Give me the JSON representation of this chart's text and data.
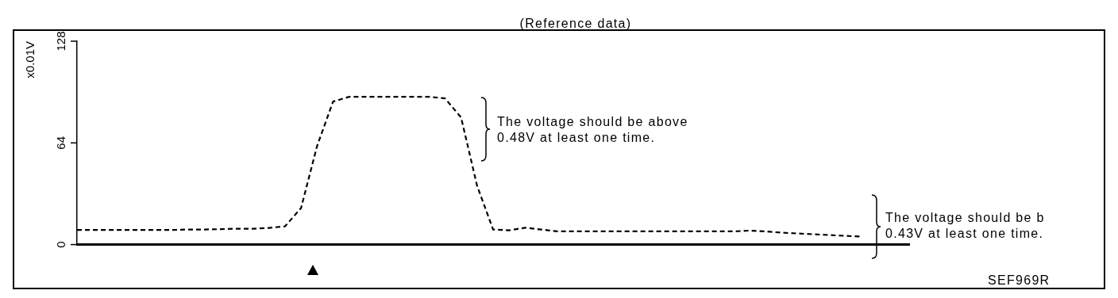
{
  "chart_data": {
    "type": "line",
    "title": "(Reference data)",
    "ylabel": "x0.01V",
    "categories": [
      null,
      null,
      null,
      null,
      null,
      null,
      null,
      null,
      null,
      null,
      null,
      null,
      null,
      null,
      null,
      null,
      null,
      null,
      null,
      null,
      null,
      null,
      null,
      null,
      null,
      null,
      null,
      null,
      null,
      null,
      null,
      null,
      null,
      null,
      null,
      null,
      null,
      null,
      null,
      null,
      null,
      null,
      null,
      null,
      null,
      null,
      null,
      null,
      null,
      null,
      null,
      null,
      null
    ],
    "series": [
      {
        "color": "#000000",
        "values": [
          9.2,
          9.2,
          9.2,
          9.2,
          9.2,
          9.2,
          9.2,
          9.5,
          9.5,
          9.7,
          10,
          10,
          10.5,
          11.5,
          23,
          62,
          90,
          93,
          93,
          93,
          93,
          93,
          93,
          92,
          80,
          37,
          9.5,
          9,
          10.6,
          9.5,
          8.3,
          8.3,
          8.3,
          8.3,
          8.3,
          8.3,
          8.3,
          8.3,
          8.3,
          8.3,
          8.3,
          8.3,
          8.8,
          8.3,
          7.5,
          7,
          6.5,
          6,
          5.5,
          5,
          null,
          null,
          null
        ]
      }
    ],
    "ylim": [
      0,
      128
    ],
    "yticks": [
      0,
      64,
      128
    ],
    "grid": false,
    "legend": false,
    "marker": "none",
    "line_style": "dashed",
    "annotations": [
      "The voltage should be above 0.48V at least one time.",
      "The voltage should be b 0.43V at least one time.",
      "SEF969R"
    ]
  }
}
